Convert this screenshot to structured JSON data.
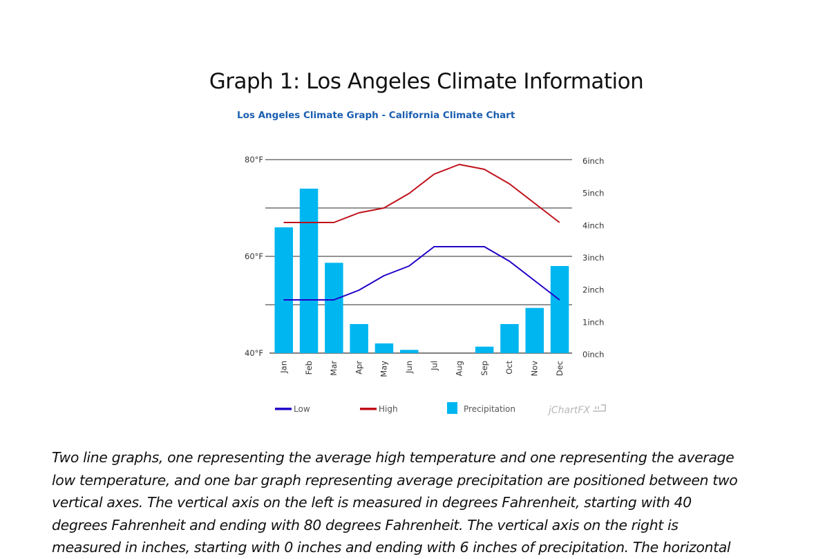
{
  "document": {
    "heading": "Graph 1: Los Angeles Climate Information",
    "description_lines": [
      "Two line graphs, one representing the average high temperature and one representing the average",
      "low temperature, and one bar graph representing average precipitation are positioned between two",
      "vertical axes. The vertical axis on the left is measured in degrees Fahrenheit, starting with 40",
      "degrees Fahrenheit and ending with 80 degrees Fahrenheit. The vertical axis on the right is",
      "measured in inches, starting with 0 inches and ending with 6 inches of precipitation. The horizontal"
    ]
  },
  "colors": {
    "low": "#2200c8",
    "high": "#c0101a",
    "precipitation": "#00b6f0",
    "title": "#1a5eb0",
    "grid": "#555555",
    "watermark": "#b8b8b8"
  },
  "chart_data": {
    "type": "bar+line",
    "title": "Los Angeles Climate Graph - California Climate Chart",
    "categories": [
      "Jan",
      "Feb",
      "Mar",
      "Apr",
      "May",
      "Jun",
      "Jul",
      "Aug",
      "Sep",
      "Oct",
      "Nov",
      "Dec"
    ],
    "series": [
      {
        "name": "Low",
        "type": "line",
        "axis": "left",
        "unit": "°F",
        "values": [
          51,
          51,
          51,
          53,
          56,
          58,
          62,
          62,
          62,
          59,
          55,
          51
        ]
      },
      {
        "name": "High",
        "type": "line",
        "axis": "left",
        "unit": "°F",
        "values": [
          67,
          67,
          67,
          69,
          70,
          73,
          77,
          79,
          78,
          75,
          71,
          67
        ]
      },
      {
        "name": "Precipitation",
        "type": "bar",
        "axis": "right",
        "unit": "inch",
        "values": [
          3.9,
          5.1,
          2.8,
          0.9,
          0.3,
          0.1,
          0,
          0,
          0.2,
          0.9,
          1.4,
          2.7
        ]
      }
    ],
    "left_axis": {
      "label": "",
      "ylim": [
        40,
        80
      ],
      "ticks": [
        "40°F",
        "60°F",
        "80°F"
      ],
      "gridlines": [
        40,
        50,
        60,
        70,
        80
      ]
    },
    "right_axis": {
      "label": "",
      "ylim": [
        0,
        6
      ],
      "ticks": [
        "0inch",
        "1inch",
        "2inch",
        "3inch",
        "4inch",
        "5inch",
        "6inch"
      ]
    },
    "xlabel": "",
    "legend": {
      "position": "bottom",
      "entries": [
        "Low",
        "High",
        "Precipitation"
      ]
    },
    "watermark": "jChartFX",
    "grid": true
  }
}
